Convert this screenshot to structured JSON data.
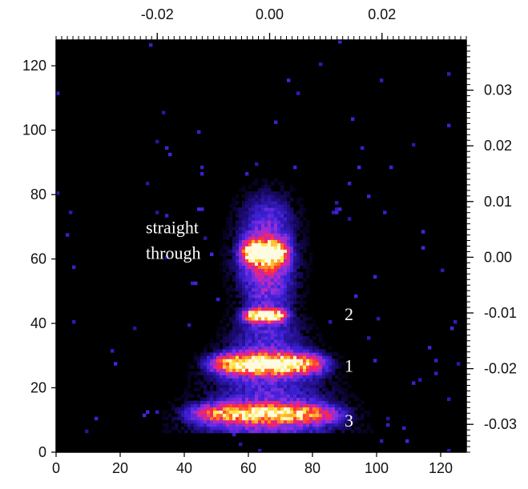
{
  "chart_data": {
    "type": "heatmap",
    "title": "",
    "xlabel": "",
    "ylabel": "",
    "bottom_axis": {
      "ticks": [
        0,
        20,
        40,
        60,
        80,
        100,
        120
      ],
      "range": [
        0,
        128
      ]
    },
    "left_axis": {
      "ticks": [
        0,
        20,
        40,
        60,
        80,
        100,
        120
      ],
      "range": [
        0,
        128
      ]
    },
    "top_axis": {
      "ticks": [
        -0.02,
        0.0,
        0.02
      ],
      "tick_labels": [
        "-0.02",
        "0.00",
        "0.02"
      ],
      "range": [
        -0.038,
        0.035
      ]
    },
    "right_axis": {
      "ticks": [
        0.03,
        0.02,
        0.01,
        0.0,
        -0.01,
        -0.02,
        -0.03
      ],
      "tick_labels": [
        "0.03",
        "0.02",
        "0.01",
        "0.00",
        "-0.01",
        "-0.02",
        "-0.03"
      ],
      "range": [
        -0.035,
        0.039
      ]
    },
    "colormap": [
      "#000000",
      "#1a0a6e",
      "#3d20d8",
      "#8a30e0",
      "#e0209a",
      "#ff2a3a",
      "#ff8a1e",
      "#ffe640",
      "#fffbe0"
    ],
    "features": [
      {
        "label": "straight through",
        "x": 65,
        "y": 62,
        "x_halfwidth": 7,
        "y_halfwidth": 3.5,
        "peak": 1.0
      },
      {
        "label": "2",
        "x": 65,
        "y": 42.5,
        "x_halfwidth": 6.5,
        "y_halfwidth": 1.8,
        "peak": 0.95
      },
      {
        "label": "1",
        "x": 66,
        "y": 27.5,
        "x_halfwidth": 17,
        "y_halfwidth": 3.0,
        "peak": 1.0
      },
      {
        "label": "3",
        "x": 65,
        "y": 12,
        "x_halfwidth": 22,
        "y_halfwidth": 3.0,
        "peak": 0.75
      }
    ],
    "annotations": [
      {
        "text": "straight",
        "x": 28,
        "y": 68
      },
      {
        "text": "through",
        "x": 28,
        "y": 60
      },
      {
        "text": "2",
        "x": 90,
        "y": 41
      },
      {
        "text": "1",
        "x": 90,
        "y": 25
      },
      {
        "text": "3",
        "x": 90,
        "y": 8
      }
    ]
  }
}
